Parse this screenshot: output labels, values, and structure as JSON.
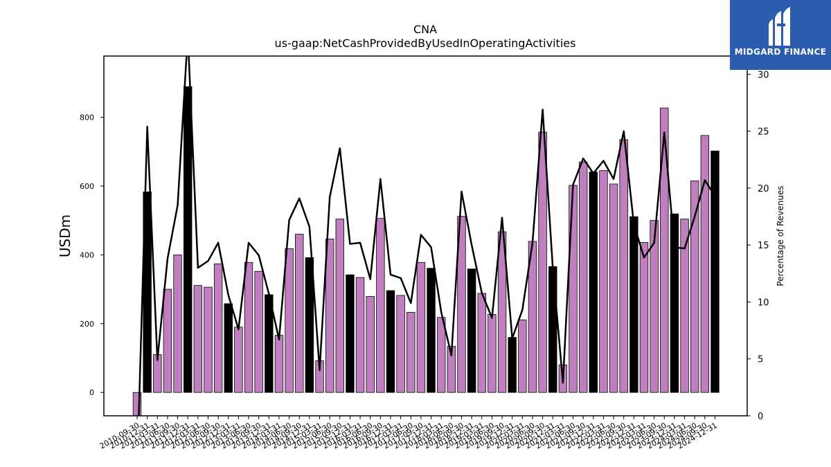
{
  "brand": {
    "name": "MIDGARD FINANCE",
    "bg_color": "#2b5cad"
  },
  "chart_data": {
    "type": "bar",
    "title": "CNA",
    "subtitle": "us-gaap:NetCashProvidedByUsedInOperatingActivities",
    "ylabel": "USDm",
    "y2label": "Percentage of Revenues",
    "ylim": [
      -68,
      978
    ],
    "y2lim": [
      0,
      31.6
    ],
    "yticks": [
      0,
      200,
      400,
      600,
      800
    ],
    "y2ticks": [
      0,
      5,
      10,
      15,
      20,
      25,
      30
    ],
    "colors": {
      "bar_quarter": "#bf7fbf",
      "bar_annual": "#000000",
      "line": "#000000"
    },
    "categories": [
      "2010-09-30",
      "2010-12-31",
      "2011-03-31",
      "2011-06-30",
      "2011-09-30",
      "2011-12-31",
      "2012-03-31",
      "2012-06-30",
      "2012-09-30",
      "2012-12-31",
      "2013-03-31",
      "2013-06-30",
      "2013-09-30",
      "2013-12-31",
      "2014-03-31",
      "2014-06-30",
      "2014-09-30",
      "2014-12-31",
      "2015-03-31",
      "2015-06-30",
      "2015-09-30",
      "2015-12-31",
      "2016-03-31",
      "2016-06-30",
      "2016-09-30",
      "2016-12-31",
      "2017-03-31",
      "2017-06-30",
      "2017-09-30",
      "2017-12-31",
      "2018-03-31",
      "2018-06-30",
      "2018-09-30",
      "2018-12-31",
      "2019-03-31",
      "2019-06-30",
      "2019-09-30",
      "2019-12-31",
      "2020-03-31",
      "2020-06-30",
      "2020-09-30",
      "2020-12-31",
      "2021-03-31",
      "2021-06-30",
      "2021-09-30",
      "2021-12-31",
      "2022-03-31",
      "2022-06-30",
      "2022-09-30",
      "2022-12-31",
      "2023-03-31",
      "2023-06-30",
      "2023-09-30",
      "2023-12-31",
      "2024-03-31",
      "2024-06-30",
      "2024-09-30",
      "2024-12-31"
    ],
    "series": [
      {
        "values": [
          -70,
          583,
          110,
          300,
          400,
          889,
          311,
          306,
          374,
          258,
          190,
          378,
          352,
          284,
          166,
          418,
          460,
          392,
          92,
          446,
          504,
          342,
          334,
          279,
          506,
          296,
          282,
          233,
          378,
          361,
          218,
          134,
          512,
          359,
          288,
          227,
          467,
          160,
          211,
          439,
          757,
          366,
          80,
          602,
          670,
          641,
          645,
          606,
          735,
          511,
          436,
          500,
          827,
          519,
          504,
          615,
          747,
          702
        ],
        "annual_flags": [
          0,
          1,
          0,
          0,
          0,
          1,
          0,
          0,
          0,
          1,
          0,
          0,
          0,
          1,
          0,
          0,
          0,
          1,
          0,
          0,
          0,
          1,
          0,
          0,
          0,
          1,
          0,
          0,
          0,
          1,
          0,
          0,
          0,
          1,
          0,
          0,
          0,
          1,
          0,
          0,
          0,
          1,
          0,
          0,
          0,
          1,
          0,
          0,
          0,
          1,
          0,
          0,
          0,
          1,
          0,
          0,
          0,
          1
        ]
      },
      {
        "values": [
          -5,
          25.4,
          4.9,
          13.8,
          18.5,
          33.5,
          13.0,
          13.6,
          15.2,
          10.6,
          7.6,
          15.2,
          14.1,
          10.7,
          6.7,
          17.2,
          19.1,
          16.6,
          4.0,
          19.2,
          23.5,
          15.1,
          15.2,
          12.0,
          20.8,
          12.4,
          12.1,
          9.9,
          15.9,
          14.8,
          9.1,
          5.3,
          19.7,
          15.0,
          10.8,
          8.6,
          17.4,
          6.8,
          9.3,
          15.2,
          26.9,
          13.0,
          2.9,
          20.3,
          22.6,
          21.3,
          22.4,
          20.8,
          25.0,
          16.8,
          13.9,
          15.2,
          24.9,
          14.8,
          14.7,
          17.5,
          20.7,
          19.3
        ]
      }
    ]
  }
}
